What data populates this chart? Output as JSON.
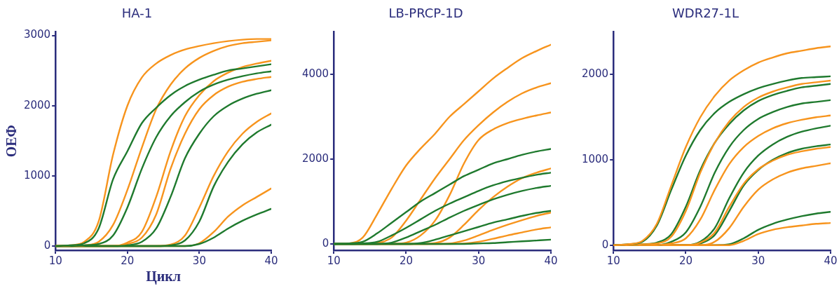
{
  "chart_data": [
    {
      "type": "line",
      "title": "HA-1",
      "xlabel": "Цикл",
      "ylabel": "ОЕФ",
      "x": [
        10,
        12,
        14,
        16,
        18,
        20,
        22,
        24,
        26,
        28,
        30,
        32,
        34,
        36,
        38,
        40
      ],
      "xlim": [
        10,
        40
      ],
      "xticks": [
        10,
        20,
        30,
        40
      ],
      "ylim": [
        -60,
        3050
      ],
      "yticks": [
        0,
        1000,
        2000,
        3000
      ],
      "series": [
        {
          "color": "#1f7a2e",
          "values": [
            0,
            10,
            40,
            250,
            950,
            1350,
            1750,
            1970,
            2150,
            2280,
            2370,
            2440,
            2500,
            2530,
            2560,
            2590
          ]
        },
        {
          "color": "#f7941d",
          "values": [
            0,
            10,
            60,
            350,
            1300,
            2000,
            2400,
            2600,
            2720,
            2800,
            2850,
            2890,
            2920,
            2940,
            2950,
            2950
          ]
        },
        {
          "color": "#1f7a2e",
          "values": [
            0,
            0,
            10,
            30,
            150,
            550,
            1100,
            1550,
            1850,
            2050,
            2200,
            2300,
            2370,
            2420,
            2460,
            2490
          ]
        },
        {
          "color": "#f7941d",
          "values": [
            0,
            0,
            10,
            60,
            300,
            800,
            1400,
            1950,
            2300,
            2530,
            2680,
            2780,
            2850,
            2890,
            2910,
            2930
          ]
        },
        {
          "color": "#1f7a2e",
          "values": [
            0,
            0,
            0,
            0,
            0,
            10,
            60,
            250,
            700,
            1250,
            1600,
            1850,
            2000,
            2100,
            2170,
            2220
          ]
        },
        {
          "color": "#f7941d",
          "values": [
            0,
            0,
            0,
            0,
            0,
            50,
            200,
            700,
            1350,
            1850,
            2150,
            2350,
            2470,
            2550,
            2600,
            2640
          ]
        },
        {
          "color": "#f7941d",
          "values": [
            0,
            0,
            0,
            0,
            0,
            30,
            120,
            450,
            1100,
            1600,
            1950,
            2150,
            2270,
            2340,
            2380,
            2410
          ]
        },
        {
          "color": "#1f7a2e",
          "values": [
            0,
            0,
            0,
            0,
            0,
            0,
            0,
            0,
            10,
            80,
            350,
            850,
            1200,
            1450,
            1620,
            1730
          ]
        },
        {
          "color": "#f7941d",
          "values": [
            0,
            0,
            0,
            0,
            0,
            0,
            0,
            0,
            20,
            150,
            550,
            1000,
            1350,
            1600,
            1770,
            1890
          ]
        },
        {
          "color": "#1f7a2e",
          "values": [
            0,
            0,
            0,
            0,
            0,
            0,
            0,
            0,
            0,
            0,
            30,
            120,
            250,
            360,
            450,
            530
          ]
        },
        {
          "color": "#f7941d",
          "values": [
            0,
            0,
            0,
            0,
            0,
            0,
            0,
            0,
            0,
            0,
            40,
            200,
            420,
            580,
            700,
            820
          ]
        }
      ]
    },
    {
      "type": "line",
      "title": "LB-PRCP-1D",
      "x": [
        10,
        12,
        14,
        16,
        18,
        20,
        22,
        24,
        26,
        28,
        30,
        32,
        34,
        36,
        38,
        40
      ],
      "xlim": [
        10,
        40
      ],
      "xticks": [
        10,
        20,
        30,
        40
      ],
      "ylim": [
        -150,
        5000
      ],
      "yticks": [
        0,
        2000,
        4000
      ],
      "series": [
        {
          "color": "#1f7a2e",
          "values": [
            0,
            10,
            50,
            250,
            500,
            750,
            1000,
            1200,
            1400,
            1600,
            1750,
            1900,
            2000,
            2100,
            2180,
            2240
          ]
        },
        {
          "color": "#1f7a2e",
          "values": [
            0,
            0,
            10,
            50,
            200,
            380,
            580,
            780,
            950,
            1100,
            1250,
            1380,
            1480,
            1560,
            1630,
            1680
          ]
        },
        {
          "color": "#1f7a2e",
          "values": [
            0,
            0,
            0,
            0,
            30,
            150,
            300,
            450,
            620,
            780,
            920,
            1050,
            1160,
            1250,
            1320,
            1370
          ]
        },
        {
          "color": "#1f7a2e",
          "values": [
            0,
            0,
            0,
            0,
            0,
            0,
            20,
            100,
            200,
            300,
            400,
            500,
            580,
            660,
            730,
            780
          ]
        },
        {
          "color": "#1f7a2e",
          "values": [
            0,
            0,
            0,
            0,
            0,
            0,
            0,
            0,
            0,
            0,
            10,
            20,
            40,
            60,
            80,
            100
          ]
        },
        {
          "color": "#f7941d",
          "values": [
            0,
            10,
            150,
            700,
            1300,
            1850,
            2250,
            2600,
            3000,
            3300,
            3600,
            3900,
            4150,
            4380,
            4550,
            4700
          ]
        },
        {
          "color": "#f7941d",
          "values": [
            0,
            0,
            0,
            20,
            150,
            550,
            1050,
            1550,
            2000,
            2450,
            2800,
            3100,
            3350,
            3550,
            3690,
            3790
          ]
        },
        {
          "color": "#f7941d",
          "values": [
            0,
            0,
            0,
            0,
            0,
            30,
            200,
            550,
            1150,
            1900,
            2450,
            2700,
            2850,
            2950,
            3030,
            3100
          ]
        },
        {
          "color": "#f7941d",
          "values": [
            0,
            0,
            0,
            0,
            0,
            0,
            0,
            20,
            150,
            450,
            800,
            1100,
            1350,
            1550,
            1680,
            1780
          ]
        },
        {
          "color": "#f7941d",
          "values": [
            0,
            0,
            0,
            0,
            0,
            0,
            0,
            0,
            10,
            80,
            200,
            330,
            450,
            560,
            660,
            740
          ]
        },
        {
          "color": "#f7941d",
          "values": [
            0,
            0,
            0,
            0,
            0,
            0,
            0,
            0,
            0,
            10,
            50,
            120,
            200,
            270,
            340,
            390
          ]
        }
      ]
    },
    {
      "type": "line",
      "title": "WDR27-1L",
      "x": [
        10,
        12,
        14,
        16,
        18,
        20,
        22,
        24,
        26,
        28,
        30,
        32,
        34,
        36,
        38,
        40
      ],
      "xlim": [
        10,
        40
      ],
      "xticks": [
        10,
        20,
        30,
        40
      ],
      "ylim": [
        -60,
        2500
      ],
      "yticks": [
        0,
        1000,
        2000
      ],
      "series": [
        {
          "color": "#f7941d",
          "values": [
            0,
            10,
            50,
            250,
            700,
            1150,
            1500,
            1750,
            1930,
            2050,
            2140,
            2200,
            2250,
            2280,
            2310,
            2330
          ]
        },
        {
          "color": "#1f7a2e",
          "values": [
            0,
            10,
            40,
            230,
            650,
            1050,
            1350,
            1550,
            1680,
            1770,
            1840,
            1890,
            1930,
            1960,
            1970,
            1980
          ]
        },
        {
          "color": "#f7941d",
          "values": [
            0,
            0,
            10,
            20,
            100,
            400,
            850,
            1200,
            1450,
            1620,
            1730,
            1800,
            1850,
            1890,
            1910,
            1930
          ]
        },
        {
          "color": "#1f7a2e",
          "values": [
            0,
            0,
            10,
            30,
            130,
            450,
            880,
            1200,
            1420,
            1580,
            1690,
            1760,
            1810,
            1850,
            1870,
            1890
          ]
        },
        {
          "color": "#f7941d",
          "values": [
            0,
            0,
            0,
            0,
            20,
            80,
            300,
            650,
            950,
            1150,
            1280,
            1370,
            1430,
            1470,
            1500,
            1520
          ]
        },
        {
          "color": "#1f7a2e",
          "values": [
            0,
            0,
            0,
            0,
            40,
            150,
            450,
            850,
            1150,
            1350,
            1480,
            1560,
            1620,
            1660,
            1680,
            1700
          ]
        },
        {
          "color": "#f7941d",
          "values": [
            0,
            0,
            0,
            0,
            0,
            0,
            30,
            150,
            450,
            720,
            890,
            990,
            1060,
            1100,
            1130,
            1150
          ]
        },
        {
          "color": "#f7941d",
          "values": [
            0,
            0,
            0,
            0,
            0,
            0,
            0,
            40,
            200,
            450,
            650,
            770,
            850,
            900,
            930,
            960
          ]
        },
        {
          "color": "#1f7a2e",
          "values": [
            0,
            0,
            0,
            0,
            0,
            0,
            40,
            200,
            550,
            850,
            1050,
            1180,
            1270,
            1330,
            1370,
            1400
          ]
        },
        {
          "color": "#1f7a2e",
          "values": [
            0,
            0,
            0,
            0,
            0,
            0,
            20,
            120,
            400,
            700,
            880,
            1000,
            1080,
            1130,
            1160,
            1180
          ]
        },
        {
          "color": "#f7941d",
          "values": [
            0,
            0,
            0,
            0,
            0,
            0,
            0,
            0,
            0,
            50,
            130,
            180,
            210,
            230,
            250,
            260
          ]
        },
        {
          "color": "#1f7a2e",
          "values": [
            0,
            0,
            0,
            0,
            0,
            0,
            0,
            0,
            10,
            80,
            180,
            250,
            300,
            340,
            370,
            390
          ]
        }
      ]
    }
  ]
}
